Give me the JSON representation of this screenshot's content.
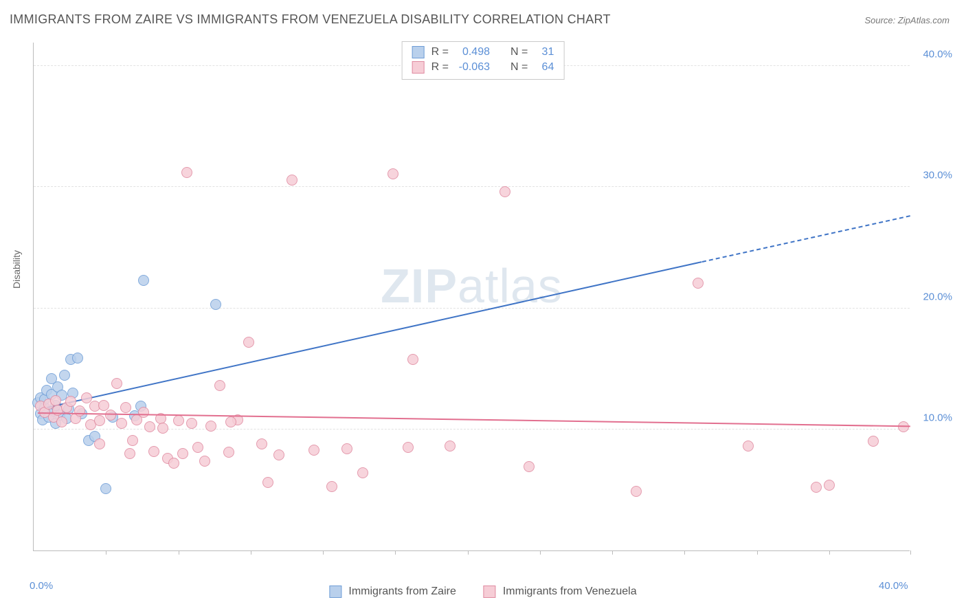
{
  "title": "IMMIGRANTS FROM ZAIRE VS IMMIGRANTS FROM VENEZUELA DISABILITY CORRELATION CHART",
  "source_prefix": "Source: ",
  "source_name": "ZipAtlas.com",
  "ylabel": "Disability",
  "watermark_bold": "ZIP",
  "watermark_light": "atlas",
  "chart": {
    "type": "scatter",
    "background_color": "#ffffff",
    "grid_color": "#e2e2e2",
    "axis_color": "#bbbbbb",
    "tick_label_color": "#5b8fd6",
    "xlim": [
      0,
      40
    ],
    "ylim": [
      0,
      42
    ],
    "yticks": [
      {
        "value": 10,
        "label": "10.0%"
      },
      {
        "value": 20,
        "label": "20.0%"
      },
      {
        "value": 30,
        "label": "30.0%"
      },
      {
        "value": 40,
        "label": "40.0%"
      }
    ],
    "xtick_positions": [
      3.3,
      6.6,
      9.9,
      13.2,
      16.5,
      19.8,
      23.1,
      26.4,
      29.7,
      33.0,
      36.3,
      40.0
    ],
    "xtick_labels": [
      {
        "value": 0,
        "label": "0.0%"
      },
      {
        "value": 40,
        "label": "40.0%"
      }
    ],
    "marker_radius": 8,
    "marker_border_width": 1.2,
    "trend_line_width": 2
  },
  "series": [
    {
      "key": "zaire",
      "label": "Immigrants from Zaire",
      "fill_color": "#b9d0ec",
      "stroke_color": "#6e9dd6",
      "line_color": "#3f74c6",
      "R_label": "R =",
      "R_value": "0.498",
      "N_label": "N =",
      "N_value": "31",
      "trend": {
        "x1": 0.2,
        "y1": 11.6,
        "x2": 30.5,
        "y2": 23.8,
        "dash_to_x": 40.0,
        "dash_to_y": 27.6
      },
      "points": [
        [
          0.2,
          12.2
        ],
        [
          0.3,
          11.3
        ],
        [
          0.3,
          12.6
        ],
        [
          0.4,
          10.8
        ],
        [
          0.5,
          11.8
        ],
        [
          0.5,
          12.5
        ],
        [
          0.6,
          13.2
        ],
        [
          0.7,
          11.0
        ],
        [
          0.8,
          12.9
        ],
        [
          0.8,
          14.2
        ],
        [
          0.9,
          11.5
        ],
        [
          1.0,
          12.0
        ],
        [
          1.0,
          10.5
        ],
        [
          1.1,
          13.5
        ],
        [
          1.2,
          11.2
        ],
        [
          1.3,
          12.8
        ],
        [
          1.4,
          14.5
        ],
        [
          1.5,
          10.9
        ],
        [
          1.6,
          11.7
        ],
        [
          1.7,
          15.8
        ],
        [
          1.8,
          13.0
        ],
        [
          2.0,
          15.9
        ],
        [
          2.2,
          11.3
        ],
        [
          2.5,
          9.1
        ],
        [
          2.8,
          9.4
        ],
        [
          3.3,
          5.1
        ],
        [
          3.6,
          11.0
        ],
        [
          4.6,
          11.1
        ],
        [
          5.0,
          22.3
        ],
        [
          8.3,
          20.3
        ],
        [
          4.9,
          11.9
        ]
      ]
    },
    {
      "key": "venezuela",
      "label": "Immigrants from Venezuela",
      "fill_color": "#f6cdd6",
      "stroke_color": "#e08aa0",
      "line_color": "#e26f8f",
      "R_label": "R =",
      "R_value": "-0.063",
      "N_label": "N =",
      "N_value": "64",
      "trend": {
        "x1": 0.2,
        "y1": 11.3,
        "x2": 40.0,
        "y2": 10.2
      },
      "points": [
        [
          0.3,
          11.9
        ],
        [
          0.5,
          11.4
        ],
        [
          0.7,
          12.1
        ],
        [
          0.9,
          11.0
        ],
        [
          1.0,
          12.4
        ],
        [
          1.1,
          11.6
        ],
        [
          1.3,
          10.6
        ],
        [
          1.5,
          11.8
        ],
        [
          1.7,
          12.3
        ],
        [
          1.9,
          10.9
        ],
        [
          2.1,
          11.5
        ],
        [
          2.4,
          12.6
        ],
        [
          2.6,
          10.4
        ],
        [
          2.8,
          11.9
        ],
        [
          3.0,
          10.7
        ],
        [
          3.2,
          12.0
        ],
        [
          3.5,
          11.2
        ],
        [
          3.8,
          13.8
        ],
        [
          4.0,
          10.5
        ],
        [
          4.2,
          11.8
        ],
        [
          4.5,
          9.1
        ],
        [
          4.7,
          10.8
        ],
        [
          5.0,
          11.4
        ],
        [
          5.3,
          10.2
        ],
        [
          5.5,
          8.2
        ],
        [
          5.8,
          10.9
        ],
        [
          6.1,
          7.6
        ],
        [
          6.4,
          7.2
        ],
        [
          6.6,
          10.7
        ],
        [
          6.8,
          8.0
        ],
        [
          7.0,
          31.2
        ],
        [
          7.2,
          10.5
        ],
        [
          7.5,
          8.5
        ],
        [
          7.8,
          7.4
        ],
        [
          8.1,
          10.3
        ],
        [
          8.5,
          13.6
        ],
        [
          8.9,
          8.1
        ],
        [
          9.3,
          10.8
        ],
        [
          9.8,
          17.2
        ],
        [
          10.4,
          8.8
        ],
        [
          10.7,
          5.6
        ],
        [
          11.2,
          7.9
        ],
        [
          11.8,
          30.6
        ],
        [
          12.8,
          8.3
        ],
        [
          13.6,
          5.3
        ],
        [
          14.3,
          8.4
        ],
        [
          15.0,
          6.4
        ],
        [
          16.4,
          31.1
        ],
        [
          17.1,
          8.5
        ],
        [
          17.3,
          15.8
        ],
        [
          19.0,
          8.6
        ],
        [
          21.5,
          29.6
        ],
        [
          22.6,
          6.9
        ],
        [
          27.5,
          4.9
        ],
        [
          30.3,
          22.1
        ],
        [
          32.6,
          8.6
        ],
        [
          35.7,
          5.2
        ],
        [
          36.3,
          5.4
        ],
        [
          38.3,
          9.0
        ],
        [
          39.7,
          10.2
        ],
        [
          3.0,
          8.8
        ],
        [
          4.4,
          8.0
        ],
        [
          5.9,
          10.1
        ],
        [
          9.0,
          10.6
        ]
      ]
    }
  ],
  "legend_top_order": [
    "zaire",
    "venezuela"
  ],
  "legend_bottom_order": [
    "zaire",
    "venezuela"
  ]
}
